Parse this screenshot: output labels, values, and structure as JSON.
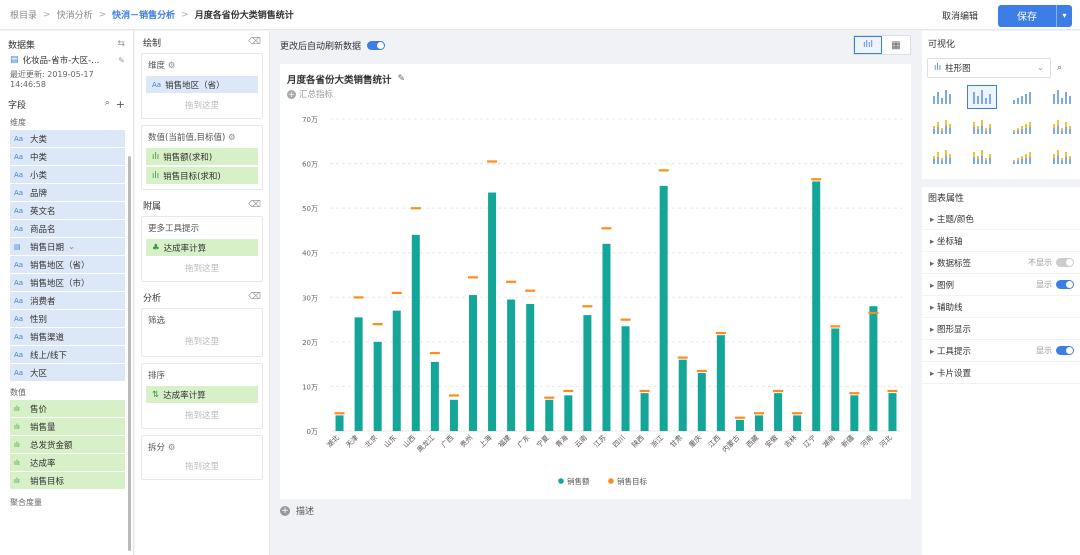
{
  "breadcrumb": {
    "items": [
      "根目录",
      "快消分析",
      "快消－销售分析",
      "月度各省份大类销售统计"
    ],
    "separator": ">"
  },
  "topbar": {
    "cancel_label": "取消编辑",
    "save_label": "保存"
  },
  "left_panel": {
    "dataset_title": "数据集",
    "dataset_name": "化妆品-省市-大区-...",
    "updated_label": "最近更新: 2019-05-17",
    "updated_time": "14:46:58",
    "fields_title": "字段",
    "dimension_title": "维度",
    "dimension_type": "Aa",
    "dimensions": [
      "大类",
      "中类",
      "小类",
      "品牌",
      "英文名",
      "商品名",
      "销售日期",
      "销售地区（省）",
      "销售地区（市）",
      "消费者",
      "性别",
      "销售渠道",
      "线上/线下",
      "大区"
    ],
    "measure_title": "数值",
    "measures": [
      "售价",
      "销售量",
      "总发货金额",
      "达成率",
      "销售目标"
    ],
    "aggregate_title": "聚合度量"
  },
  "mid_panel": {
    "draw_title": "绘制",
    "dimension_box_title": "维度",
    "dimension_chip": "销售地区（省）",
    "drop_hint": "拖到这里",
    "value_box_title": "数值(当前值,目标值)",
    "value_chips": [
      "销售额(求和)",
      "销售目标(求和)"
    ],
    "attach_title": "附属",
    "tooltip_box_title": "更多工具提示",
    "tooltip_chip": "达成率计算",
    "analysis_title": "分析",
    "filter_title": "筛选",
    "sort_title": "排序",
    "sort_chip": "达成率计算",
    "split_title": "拆分"
  },
  "main_panel": {
    "auto_refresh_label": "更改后自动刷新数据",
    "summary_label": "汇总指标",
    "describe_label": "描述"
  },
  "right_panel": {
    "viz_title": "可视化",
    "chart_type_select": "柱形图",
    "props_title": "图表属性",
    "props": [
      {
        "label": "主题/颜色",
        "status": "",
        "toggle": false
      },
      {
        "label": "坐标轴",
        "status": "",
        "toggle": false
      },
      {
        "label": "数据标签",
        "status": "不显示",
        "toggle": "off"
      },
      {
        "label": "图例",
        "status": "显示",
        "toggle": "on"
      },
      {
        "label": "辅助线",
        "status": "",
        "toggle": false
      },
      {
        "label": "图形显示",
        "status": "",
        "toggle": false
      },
      {
        "label": "工具提示",
        "status": "显示",
        "toggle": "on"
      },
      {
        "label": "卡片设置",
        "status": "",
        "toggle": false
      }
    ]
  },
  "chart_data": {
    "type": "bar",
    "title": "月度各省份大类销售统计",
    "categories": [
      "湖北",
      "天津",
      "北京",
      "山东",
      "山西",
      "黑龙江",
      "广西",
      "贵州",
      "上海",
      "福建",
      "广东",
      "宁夏",
      "青海",
      "云南",
      "江苏",
      "四川",
      "陕西",
      "浙江",
      "甘肃",
      "重庆",
      "江西",
      "内蒙古",
      "西藏",
      "安徽",
      "吉林",
      "辽宁",
      "湖南",
      "新疆",
      "河南",
      "河北"
    ],
    "series": [
      {
        "name": "销售额",
        "color": "#14a699",
        "values": [
          3.5,
          25.5,
          20,
          27,
          44,
          15.5,
          7,
          30.5,
          53.5,
          29.5,
          28.5,
          7,
          8,
          26,
          42,
          23.5,
          8.5,
          55,
          16,
          13,
          21.5,
          2.5,
          3.5,
          8.5,
          3.5,
          56,
          23,
          8,
          28,
          8.5
        ]
      },
      {
        "name": "销售目标",
        "color": "#ff8c1a",
        "values": [
          4,
          30,
          24,
          31,
          50,
          17.5,
          8,
          34.5,
          60.5,
          33.5,
          31.5,
          7.5,
          9,
          28,
          45.5,
          25,
          9,
          58.5,
          16.5,
          13.5,
          22,
          3,
          4,
          9,
          4,
          56.5,
          23.5,
          8.5,
          26.5,
          9
        ]
      }
    ],
    "yticks": [
      "0万",
      "10万",
      "20万",
      "30万",
      "40万",
      "50万",
      "60万",
      "70万"
    ],
    "ylim": [
      0,
      70
    ],
    "grid": true,
    "legend_position": "bottom"
  }
}
